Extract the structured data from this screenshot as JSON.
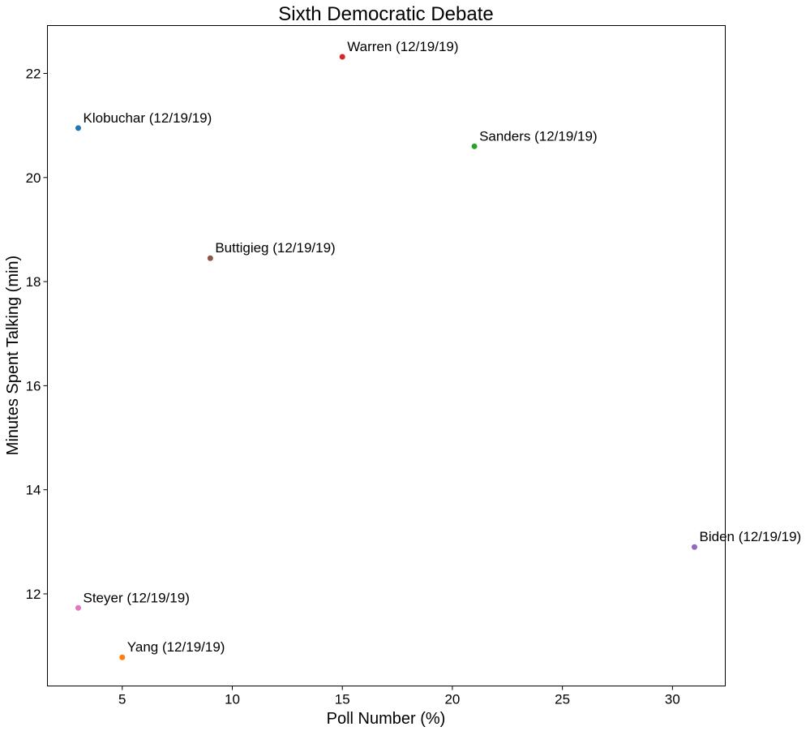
{
  "chart_data": {
    "type": "scatter",
    "title": "Sixth Democratic Debate",
    "xlabel": "Poll Number (%)",
    "ylabel": "Minutes Spent Talking (min)",
    "xlim": [
      1.6,
      32.4
    ],
    "ylim": [
      10.23,
      22.92
    ],
    "xticks": [
      5,
      10,
      15,
      20,
      25,
      30
    ],
    "yticks": [
      12,
      14,
      16,
      18,
      20,
      22
    ],
    "grid": false,
    "points": [
      {
        "label": "Klobuchar (12/19/19)",
        "x": 3,
        "y": 20.95,
        "color": "#1f77b4"
      },
      {
        "label": "Yang (12/19/19)",
        "x": 5,
        "y": 10.78,
        "color": "#ff7f0e"
      },
      {
        "label": "Sanders (12/19/19)",
        "x": 21,
        "y": 20.6,
        "color": "#2ca02c"
      },
      {
        "label": "Warren (12/19/19)",
        "x": 15,
        "y": 22.32,
        "color": "#d62728"
      },
      {
        "label": "Biden (12/19/19)",
        "x": 31,
        "y": 12.9,
        "color": "#9467bd"
      },
      {
        "label": "Buttigieg (12/19/19)",
        "x": 9,
        "y": 18.45,
        "color": "#8c564b"
      },
      {
        "label": "Steyer (12/19/19)",
        "x": 3,
        "y": 11.73,
        "color": "#e377c2"
      }
    ]
  }
}
